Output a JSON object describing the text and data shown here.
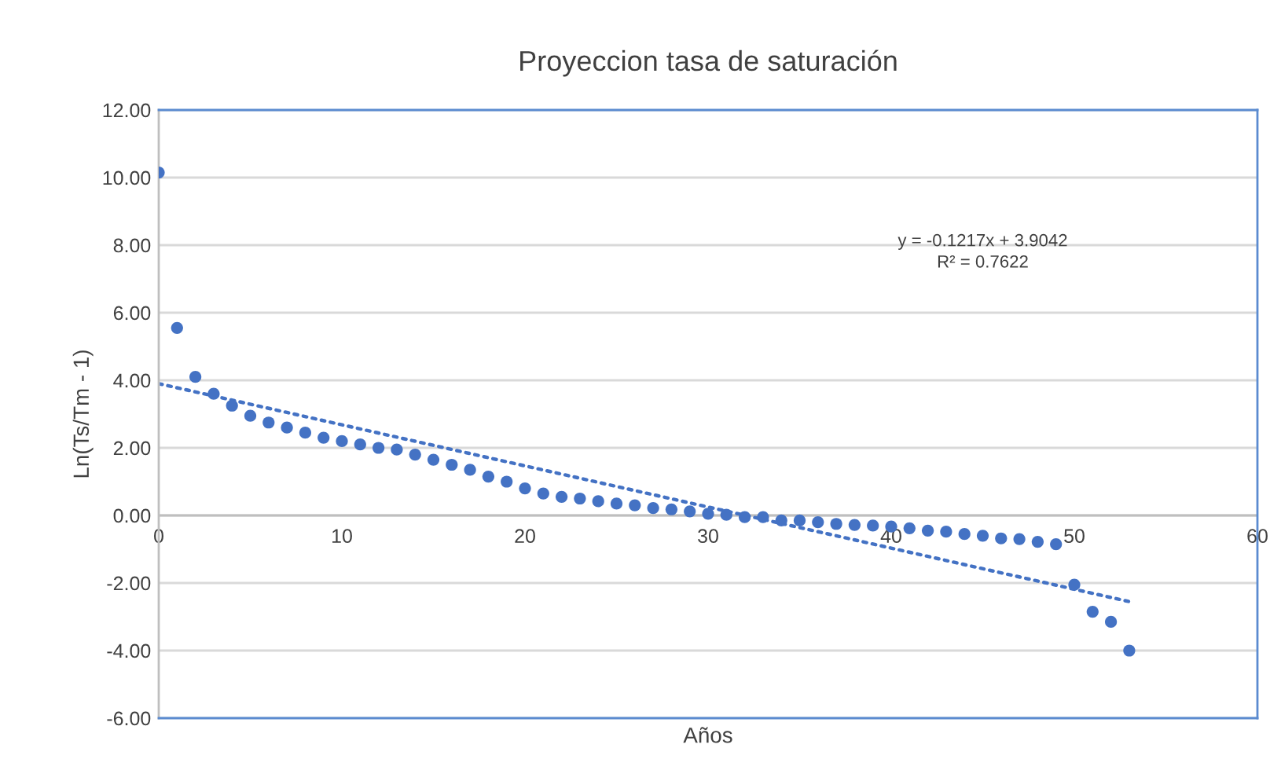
{
  "chart_data": {
    "type": "scatter",
    "title": "Proyeccion tasa de saturación",
    "xlabel": "Años",
    "ylabel": "Ln(Ts/Tm - 1)",
    "x": [
      0,
      1,
      2,
      3,
      4,
      5,
      6,
      7,
      8,
      9,
      10,
      11,
      12,
      13,
      14,
      15,
      16,
      17,
      18,
      19,
      20,
      21,
      22,
      23,
      24,
      25,
      26,
      27,
      28,
      29,
      30,
      31,
      32,
      33,
      34,
      35,
      36,
      37,
      38,
      39,
      40,
      41,
      42,
      43,
      44,
      45,
      46,
      47,
      48,
      49,
      50,
      51,
      52,
      53
    ],
    "series": [
      {
        "color": "#4472c4",
        "marker": "circle",
        "values": [
          10.15,
          5.55,
          4.1,
          3.6,
          3.25,
          2.95,
          2.75,
          2.6,
          2.45,
          2.3,
          2.2,
          2.1,
          2.0,
          1.95,
          1.8,
          1.65,
          1.5,
          1.35,
          1.15,
          1.0,
          0.8,
          0.65,
          0.55,
          0.5,
          0.42,
          0.35,
          0.3,
          0.22,
          0.18,
          0.12,
          0.05,
          0.02,
          -0.05,
          -0.05,
          -0.15,
          -0.15,
          -0.2,
          -0.25,
          -0.28,
          -0.3,
          -0.33,
          -0.38,
          -0.45,
          -0.48,
          -0.55,
          -0.6,
          -0.68,
          -0.7,
          -0.78,
          -0.85,
          -2.05,
          -2.85,
          -3.15,
          -4.0
        ]
      },
      {
        "type": "line",
        "color": "#4472c4",
        "line_style": "dotted",
        "x": [
          0,
          53
        ],
        "values": [
          3.9,
          -2.55
        ]
      }
    ],
    "annotations": [
      "y = -0.1217x + 3.9042\nR² = 0.7622"
    ],
    "xlim": [
      0,
      60
    ],
    "xticks": [
      0,
      10,
      20,
      30,
      40,
      50,
      60
    ],
    "ylim": [
      -6,
      12
    ],
    "yticks": [
      {
        "value": -6,
        "label": "-6.00"
      },
      {
        "value": -4,
        "label": "-4.00"
      },
      {
        "value": -2,
        "label": "-2.00"
      },
      {
        "value": 0,
        "label": "0.00"
      },
      {
        "value": 2,
        "label": "2.00"
      },
      {
        "value": 4,
        "label": "4.00"
      },
      {
        "value": 6,
        "label": "6.00"
      },
      {
        "value": 8,
        "label": "8.00"
      },
      {
        "value": 10,
        "label": "10.00"
      },
      {
        "value": 12,
        "label": "12.00"
      }
    ],
    "grid": "y"
  }
}
